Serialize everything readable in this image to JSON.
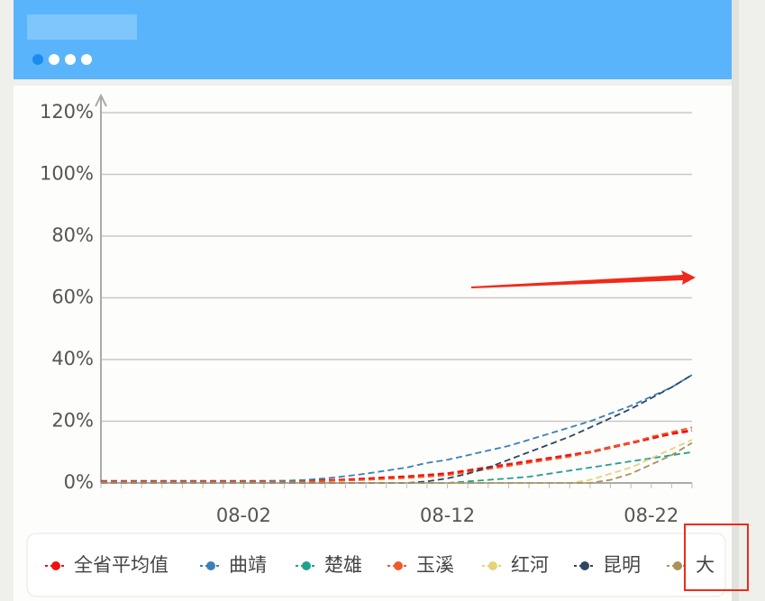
{
  "chart_data": {
    "type": "line",
    "categories": [
      null,
      null,
      null,
      null,
      null,
      null,
      null,
      "08-02",
      null,
      null,
      null,
      null,
      null,
      null,
      null,
      null,
      null,
      "08-12",
      null,
      null,
      null,
      null,
      null,
      null,
      null,
      null,
      null,
      "08-22",
      null,
      null
    ],
    "ylim": [
      0,
      120
    ],
    "yticks": [
      {
        "value": 0,
        "label": "0%"
      },
      {
        "value": 20,
        "label": "20%"
      },
      {
        "value": 40,
        "label": "40%"
      },
      {
        "value": 60,
        "label": "60%"
      },
      {
        "value": 80,
        "label": "80%"
      },
      {
        "value": 100,
        "label": "100%"
      },
      {
        "value": 120,
        "label": "120%"
      }
    ],
    "grid": true,
    "series": [
      {
        "name": "全省平均值",
        "color": "#f01010",
        "values": [
          0.5,
          0.5,
          0.5,
          0.5,
          0.5,
          0.5,
          0.5,
          0.5,
          0.5,
          0.5,
          0.5,
          0.8,
          1,
          1.3,
          1.7,
          2,
          2.5,
          3,
          4,
          5,
          6,
          7,
          8,
          9,
          10,
          11.5,
          13,
          14.5,
          16,
          17
        ]
      },
      {
        "name": "曲靖",
        "color": "#3a80b8",
        "values": [
          0.5,
          0.5,
          0.5,
          0.5,
          0.5,
          0.5,
          0.5,
          0.5,
          0.5,
          0.7,
          1,
          1.5,
          2.2,
          3,
          4,
          5,
          6.5,
          7.5,
          9,
          10.5,
          12,
          14,
          16,
          18,
          20,
          22.5,
          25,
          28,
          31,
          35
        ]
      },
      {
        "name": "楚雄",
        "color": "#21a08c",
        "values": [
          0,
          0,
          0,
          0,
          0,
          0,
          0,
          0,
          0,
          0,
          0,
          0,
          0,
          0,
          0,
          0,
          0,
          0,
          0.5,
          1,
          1.5,
          2,
          3,
          4,
          5,
          6,
          7,
          8,
          9,
          10
        ]
      },
      {
        "name": "玉溪",
        "color": "#f05a28",
        "values": [
          0.3,
          0.3,
          0.3,
          0.3,
          0.3,
          0.3,
          0.3,
          0.3,
          0.3,
          0.3,
          0.4,
          0.6,
          0.8,
          1,
          1.3,
          1.6,
          2,
          2.5,
          3.5,
          4.5,
          5.5,
          6.5,
          7.5,
          8.5,
          10,
          11.5,
          13,
          15,
          16.5,
          18
        ]
      },
      {
        "name": "红河",
        "color": "#e6d27a",
        "values": [
          0,
          0,
          0,
          0,
          0,
          0,
          0,
          0,
          0,
          0,
          0,
          0,
          0,
          0,
          0,
          0,
          0,
          0,
          0,
          0,
          0,
          0,
          0,
          0,
          1,
          3,
          5,
          8,
          11,
          14
        ]
      },
      {
        "name": "昆明",
        "color": "#2c4662",
        "values": [
          0,
          0,
          0,
          0,
          0,
          0,
          0,
          0,
          0,
          0,
          0,
          0,
          0,
          0,
          0,
          0,
          0.5,
          1.5,
          3,
          5,
          7.5,
          10,
          12.5,
          15,
          18,
          21,
          24,
          27.5,
          31,
          35
        ]
      },
      {
        "name": "大",
        "color": "#a8925a",
        "values": [
          0,
          0,
          0,
          0,
          0,
          0,
          0,
          0,
          0,
          0,
          0,
          0,
          0,
          0,
          0,
          0,
          0,
          0,
          0,
          0,
          0,
          0,
          0,
          0,
          0,
          1,
          3,
          6,
          9,
          13
        ]
      }
    ]
  }
}
